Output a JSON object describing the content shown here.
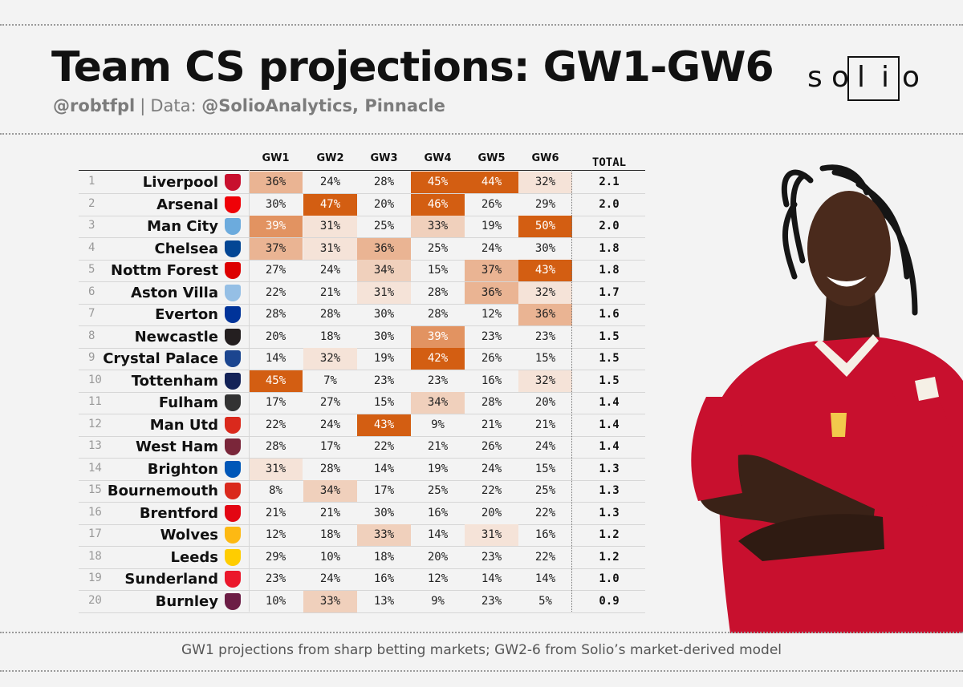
{
  "header": {
    "title": "Team CS projections: GW1-GW6",
    "author": "@robtfpl",
    "separator": "|",
    "data_prefix": "Data:",
    "data_sources": "@SolioAnalytics, Pinnacle"
  },
  "logo": {
    "letters": [
      "s",
      "o",
      "l",
      "i",
      "o"
    ]
  },
  "footer": "GW1 projections from sharp betting markets; GW2-6 from Solio’s market-derived model",
  "colors": {
    "accent": "#d35e12",
    "mid": "#e5ab84",
    "light": "#f1d4c1",
    "faint": "#f7ebe3"
  },
  "chart_data": {
    "type": "table",
    "columns": [
      "GW1",
      "GW2",
      "GW3",
      "GW4",
      "GW5",
      "GW6",
      "TOTAL"
    ],
    "rows": [
      {
        "rank": "1",
        "team": "Liverpool",
        "crest": "#c8102e",
        "values": [
          "36%",
          "24%",
          "28%",
          "45%",
          "44%",
          "32%"
        ],
        "total": "2.1"
      },
      {
        "rank": "2",
        "team": "Arsenal",
        "crest": "#ef0107",
        "values": [
          "30%",
          "47%",
          "20%",
          "46%",
          "26%",
          "29%"
        ],
        "total": "2.0"
      },
      {
        "rank": "3",
        "team": "Man City",
        "crest": "#6cabdd",
        "values": [
          "39%",
          "31%",
          "25%",
          "33%",
          "19%",
          "50%"
        ],
        "total": "2.0"
      },
      {
        "rank": "4",
        "team": "Chelsea",
        "crest": "#034694",
        "values": [
          "37%",
          "31%",
          "36%",
          "25%",
          "24%",
          "30%"
        ],
        "total": "1.8"
      },
      {
        "rank": "5",
        "team": "Nottm Forest",
        "crest": "#dd0000",
        "values": [
          "27%",
          "24%",
          "34%",
          "15%",
          "37%",
          "43%"
        ],
        "total": "1.8"
      },
      {
        "rank": "6",
        "team": "Aston Villa",
        "crest": "#95bfe5",
        "values": [
          "22%",
          "21%",
          "31%",
          "28%",
          "36%",
          "32%"
        ],
        "total": "1.7"
      },
      {
        "rank": "7",
        "team": "Everton",
        "crest": "#003399",
        "values": [
          "28%",
          "28%",
          "30%",
          "28%",
          "12%",
          "36%"
        ],
        "total": "1.6"
      },
      {
        "rank": "8",
        "team": "Newcastle",
        "crest": "#241f20",
        "values": [
          "20%",
          "18%",
          "30%",
          "39%",
          "23%",
          "23%"
        ],
        "total": "1.5"
      },
      {
        "rank": "9",
        "team": "Crystal Palace",
        "crest": "#1b458f",
        "values": [
          "14%",
          "32%",
          "19%",
          "42%",
          "26%",
          "15%"
        ],
        "total": "1.5"
      },
      {
        "rank": "10",
        "team": "Tottenham",
        "crest": "#132257",
        "values": [
          "45%",
          "7%",
          "23%",
          "23%",
          "16%",
          "32%"
        ],
        "total": "1.5"
      },
      {
        "rank": "11",
        "team": "Fulham",
        "crest": "#333333",
        "values": [
          "17%",
          "27%",
          "15%",
          "34%",
          "28%",
          "20%"
        ],
        "total": "1.4"
      },
      {
        "rank": "12",
        "team": "Man Utd",
        "crest": "#da291c",
        "values": [
          "22%",
          "24%",
          "43%",
          "9%",
          "21%",
          "21%"
        ],
        "total": "1.4"
      },
      {
        "rank": "13",
        "team": "West Ham",
        "crest": "#7a263a",
        "values": [
          "28%",
          "17%",
          "22%",
          "21%",
          "26%",
          "24%"
        ],
        "total": "1.4"
      },
      {
        "rank": "14",
        "team": "Brighton",
        "crest": "#0057b8",
        "values": [
          "31%",
          "28%",
          "14%",
          "19%",
          "24%",
          "15%"
        ],
        "total": "1.3"
      },
      {
        "rank": "15",
        "team": "Bournemouth",
        "crest": "#da291c",
        "values": [
          "8%",
          "34%",
          "17%",
          "25%",
          "22%",
          "25%"
        ],
        "total": "1.3"
      },
      {
        "rank": "16",
        "team": "Brentford",
        "crest": "#e30613",
        "values": [
          "21%",
          "21%",
          "30%",
          "16%",
          "20%",
          "22%"
        ],
        "total": "1.3"
      },
      {
        "rank": "17",
        "team": "Wolves",
        "crest": "#fdb913",
        "values": [
          "12%",
          "18%",
          "33%",
          "14%",
          "31%",
          "16%"
        ],
        "total": "1.2"
      },
      {
        "rank": "18",
        "team": "Leeds",
        "crest": "#ffcd00",
        "values": [
          "29%",
          "10%",
          "18%",
          "20%",
          "23%",
          "22%"
        ],
        "total": "1.2"
      },
      {
        "rank": "19",
        "team": "Sunderland",
        "crest": "#eb172b",
        "values": [
          "23%",
          "24%",
          "16%",
          "12%",
          "14%",
          "14%"
        ],
        "total": "1.0"
      },
      {
        "rank": "20",
        "team": "Burnley",
        "crest": "#6c1d45",
        "values": [
          "10%",
          "33%",
          "13%",
          "9%",
          "23%",
          "5%"
        ],
        "total": "0.9"
      }
    ]
  }
}
